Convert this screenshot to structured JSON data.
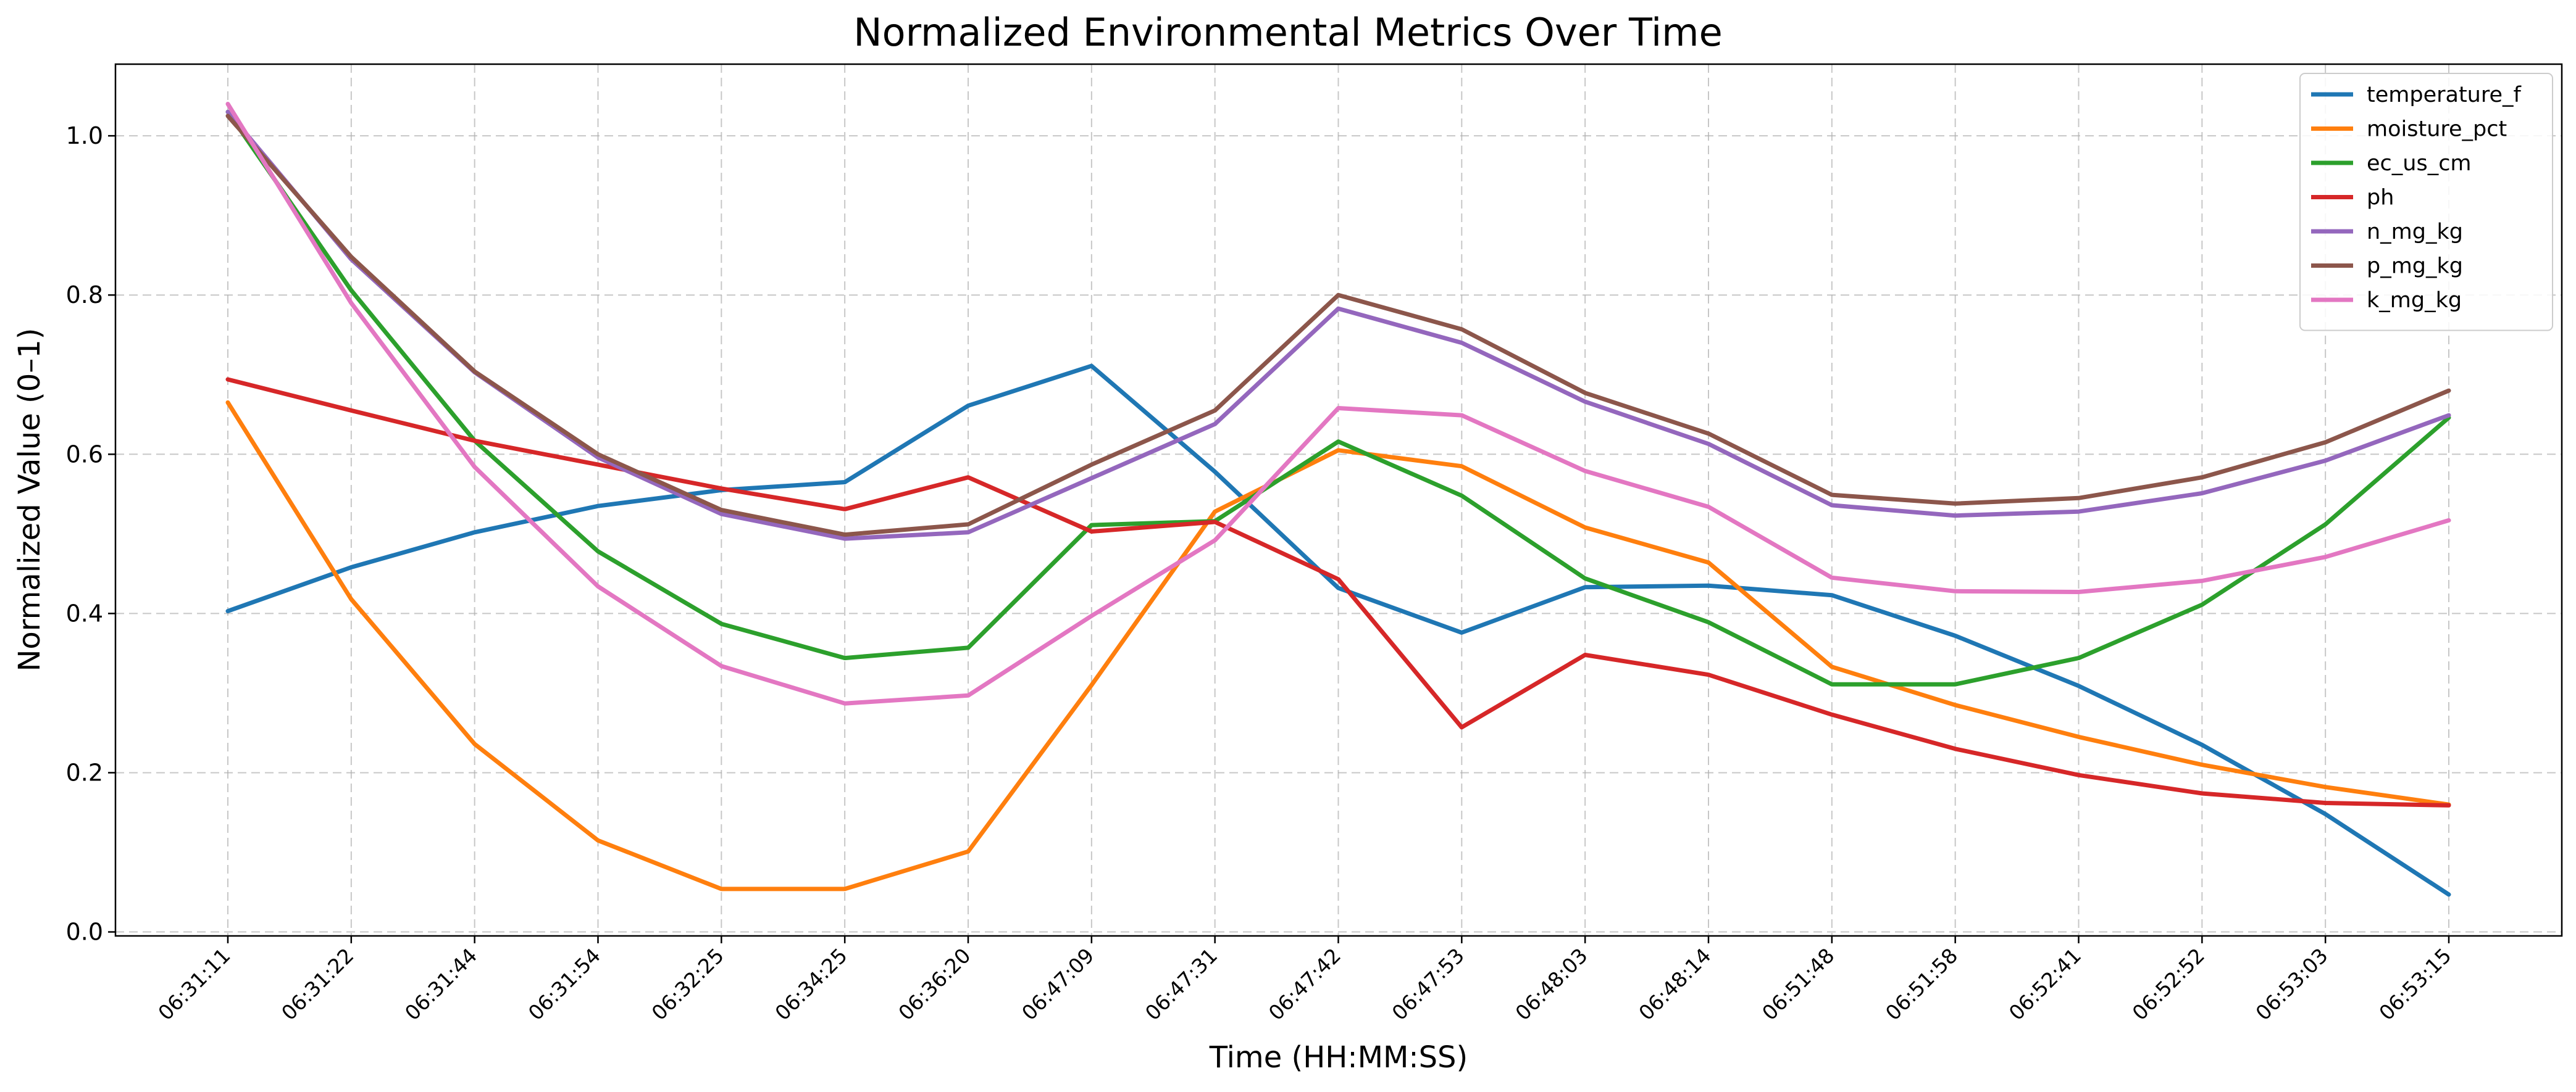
{
  "chart_data": {
    "type": "line",
    "title": "Normalized Environmental Metrics Over Time",
    "xlabel": "Time (HH:MM:SS)",
    "ylabel": "Normalized Value (0–1)",
    "ylim": [
      -0.005,
      1.09
    ],
    "yticks": [
      "0.0",
      "0.2",
      "0.4",
      "0.6",
      "0.8",
      "1.0"
    ],
    "grid": true,
    "legend_position": "top-right",
    "categories": [
      "06:31:11",
      "06:31:22",
      "06:31:44",
      "06:31:54",
      "06:32:25",
      "06:34:25",
      "06:36:20",
      "06:47:09",
      "06:47:31",
      "06:47:42",
      "06:47:53",
      "06:48:03",
      "06:48:14",
      "06:51:48",
      "06:51:58",
      "06:52:41",
      "06:52:52",
      "06:53:03",
      "06:53:15"
    ],
    "series": [
      {
        "name": "temperature_f",
        "color": "#1f77b4",
        "values": [
          0.403,
          0.458,
          0.502,
          0.535,
          0.555,
          0.565,
          0.661,
          0.711,
          0.578,
          0.432,
          0.376,
          0.433,
          0.435,
          0.423,
          0.372,
          0.309,
          0.235,
          0.148,
          0.047
        ]
      },
      {
        "name": "moisture_pct",
        "color": "#ff7f0e",
        "values": [
          0.665,
          0.418,
          0.236,
          0.115,
          0.054,
          0.054,
          0.101,
          0.31,
          0.528,
          0.605,
          0.585,
          0.508,
          0.464,
          0.333,
          0.285,
          0.245,
          0.21,
          0.182,
          0.16
        ]
      },
      {
        "name": "ec_us_cm",
        "color": "#2ca02c",
        "values": [
          1.03,
          0.806,
          0.617,
          0.478,
          0.387,
          0.344,
          0.357,
          0.511,
          0.516,
          0.616,
          0.548,
          0.444,
          0.389,
          0.311,
          0.311,
          0.344,
          0.411,
          0.512,
          0.646
        ]
      },
      {
        "name": "ph",
        "color": "#d62728",
        "values": [
          0.694,
          0.655,
          0.617,
          0.587,
          0.557,
          0.531,
          0.571,
          0.503,
          0.515,
          0.443,
          0.257,
          0.348,
          0.323,
          0.273,
          0.23,
          0.197,
          0.174,
          0.162,
          0.159
        ]
      },
      {
        "name": "n_mg_kg",
        "color": "#9467bd",
        "values": [
          1.03,
          0.845,
          0.703,
          0.596,
          0.525,
          0.494,
          0.502,
          0.57,
          0.638,
          0.783,
          0.74,
          0.666,
          0.613,
          0.536,
          0.523,
          0.528,
          0.551,
          0.592,
          0.649
        ]
      },
      {
        "name": "p_mg_kg",
        "color": "#8c564b",
        "values": [
          1.025,
          0.848,
          0.704,
          0.6,
          0.53,
          0.499,
          0.512,
          0.587,
          0.655,
          0.8,
          0.757,
          0.677,
          0.626,
          0.549,
          0.538,
          0.545,
          0.571,
          0.615,
          0.68
        ]
      },
      {
        "name": "k_mg_kg",
        "color": "#e377c2",
        "values": [
          1.04,
          0.79,
          0.584,
          0.434,
          0.334,
          0.287,
          0.297,
          0.397,
          0.492,
          0.658,
          0.649,
          0.579,
          0.534,
          0.445,
          0.428,
          0.427,
          0.441,
          0.471,
          0.517
        ]
      }
    ]
  }
}
